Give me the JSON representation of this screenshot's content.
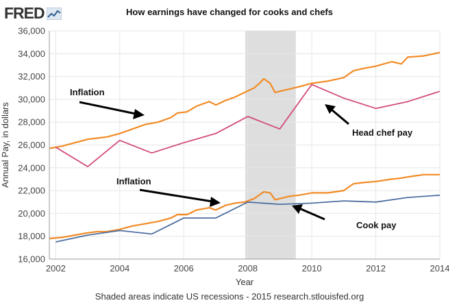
{
  "header": {
    "logo_text": "FRED",
    "title": "How earnings have changed for cooks and chefs"
  },
  "footer": {
    "text": "Shaded areas indicate US recessions - 2015 research.stlouisfed.org"
  },
  "annotations": {
    "inflation_top": "Inflation",
    "inflation_bottom": "Inflation",
    "head_chef": "Head chef pay",
    "cook": "Cook pay"
  },
  "colors": {
    "inflation": "#f28a24",
    "head_chef": "#d14b7e",
    "cook": "#4f6fa0",
    "recession": "#dedede",
    "grid": "#e6e6e6"
  },
  "chart_data": {
    "type": "line",
    "xlabel": "Year",
    "ylabel": "Annual Pay, in dollars",
    "xlim": [
      2001.8,
      2014.0
    ],
    "ylim": [
      16000,
      36000
    ],
    "x_ticks": [
      "2002",
      "2004",
      "2006",
      "2008",
      "2010",
      "2012",
      "2014"
    ],
    "y_ticks": [
      "16,000",
      "18,000",
      "20,000",
      "22,000",
      "24,000",
      "26,000",
      "28,000",
      "30,000",
      "32,000",
      "34,000",
      "36,000"
    ],
    "recession": [
      2007.92,
      2009.5
    ],
    "grid": true,
    "series": [
      {
        "name": "Inflation (upper)",
        "x": [
          2001.8,
          2002.2,
          2002.6,
          2003.0,
          2003.3,
          2003.6,
          2004.0,
          2004.4,
          2004.8,
          2005.2,
          2005.6,
          2005.8,
          2006.1,
          2006.4,
          2006.8,
          2007.0,
          2007.3,
          2007.6,
          2007.9,
          2008.2,
          2008.4,
          2008.5,
          2008.7,
          2008.85,
          2009.0,
          2009.3,
          2009.6,
          2010.0,
          2010.5,
          2011.0,
          2011.3,
          2011.6,
          2012.0,
          2012.5,
          2012.8,
          2013.0,
          2013.5,
          2014.0
        ],
        "y": [
          25700,
          25900,
          26200,
          26500,
          26600,
          26700,
          27000,
          27400,
          27800,
          28000,
          28400,
          28800,
          28900,
          29400,
          29800,
          29500,
          29900,
          30200,
          30600,
          31000,
          31500,
          31800,
          31400,
          30600,
          30700,
          30900,
          31100,
          31400,
          31600,
          31900,
          32500,
          32700,
          32900,
          33300,
          33100,
          33700,
          33800,
          34100
        ]
      },
      {
        "name": "Head chef pay",
        "x": [
          2002.0,
          2003.0,
          2004.0,
          2005.0,
          2006.0,
          2007.0,
          2008.0,
          2009.0,
          2010.0,
          2011.0,
          2012.0,
          2013.0,
          2014.0
        ],
        "y": [
          25800,
          24100,
          26400,
          25300,
          26200,
          27000,
          28500,
          27400,
          31300,
          30100,
          29200,
          29800,
          30700
        ]
      },
      {
        "name": "Inflation (lower)",
        "x": [
          2001.8,
          2002.2,
          2002.6,
          2003.0,
          2003.3,
          2003.6,
          2004.0,
          2004.4,
          2004.8,
          2005.2,
          2005.6,
          2005.8,
          2006.1,
          2006.4,
          2006.8,
          2007.0,
          2007.3,
          2007.6,
          2007.9,
          2008.2,
          2008.4,
          2008.5,
          2008.7,
          2008.85,
          2009.0,
          2009.3,
          2009.6,
          2010.0,
          2010.5,
          2011.0,
          2011.3,
          2011.6,
          2012.0,
          2012.5,
          2012.8,
          2013.0,
          2013.5,
          2014.0
        ],
        "y": [
          17800,
          17900,
          18100,
          18300,
          18400,
          18400,
          18600,
          18900,
          19100,
          19300,
          19600,
          19900,
          19900,
          20300,
          20500,
          20300,
          20700,
          20900,
          21000,
          21300,
          21700,
          21900,
          21800,
          21200,
          21300,
          21500,
          21600,
          21800,
          21800,
          22000,
          22600,
          22700,
          22800,
          23000,
          23100,
          23200,
          23400,
          23400
        ]
      },
      {
        "name": "Cook pay",
        "x": [
          2002.0,
          2003.0,
          2004.0,
          2005.0,
          2006.0,
          2007.0,
          2008.0,
          2009.0,
          2010.0,
          2011.0,
          2012.0,
          2013.0,
          2014.0
        ],
        "y": [
          17500,
          18100,
          18500,
          18200,
          19600,
          19600,
          21000,
          20800,
          20900,
          21100,
          21000,
          21400,
          21600
        ]
      }
    ]
  }
}
